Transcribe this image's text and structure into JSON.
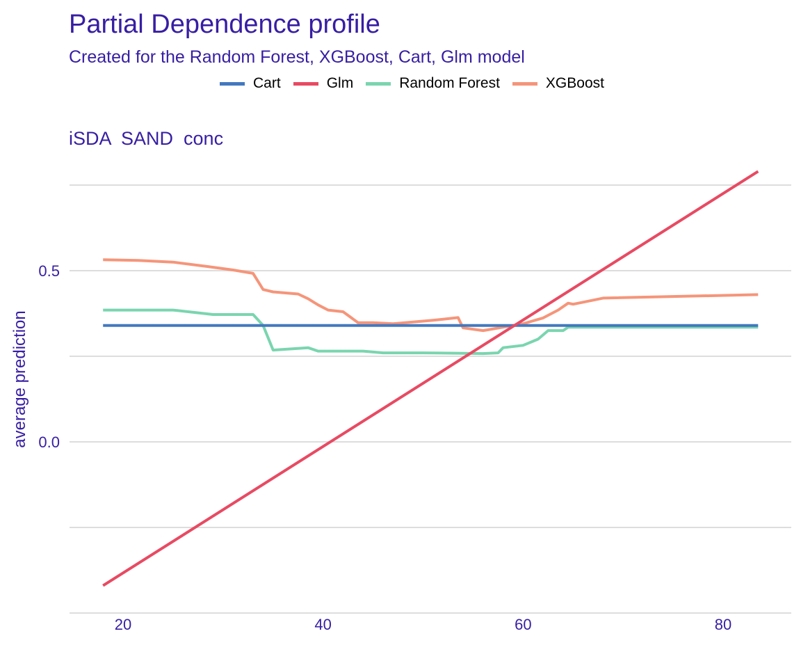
{
  "chart_data": {
    "type": "line",
    "title": "Partial Dependence profile",
    "subtitle": "Created for the Random Forest, XGBoost, Cart, Glm model",
    "panel_title": "iSDA  SAND  conc",
    "xlabel": "",
    "ylabel": "average prediction",
    "xlim": [
      16,
      86
    ],
    "ylim": [
      -0.5,
      0.8
    ],
    "x_ticks": [
      20,
      40,
      60,
      80
    ],
    "y_ticks": [
      0.0,
      0.5
    ],
    "y_gridlines": [
      -0.5,
      -0.25,
      0.0,
      0.25,
      0.5,
      0.75
    ],
    "grid": true,
    "legend_position": "top",
    "series": [
      {
        "name": "Cart",
        "color": "#4378bf",
        "points": [
          [
            18,
            0.34
          ],
          [
            83.5,
            0.34
          ]
        ]
      },
      {
        "name": "Glm",
        "color": "#e84a62",
        "points": [
          [
            18,
            -0.42
          ],
          [
            83.5,
            0.79
          ]
        ]
      },
      {
        "name": "Random Forest",
        "color": "#7ad5af",
        "points": [
          [
            18,
            0.385
          ],
          [
            25,
            0.385
          ],
          [
            29,
            0.372
          ],
          [
            33,
            0.372
          ],
          [
            34,
            0.34
          ],
          [
            35,
            0.268
          ],
          [
            38.5,
            0.275
          ],
          [
            39.5,
            0.265
          ],
          [
            44,
            0.265
          ],
          [
            46,
            0.26
          ],
          [
            50,
            0.26
          ],
          [
            56,
            0.258
          ],
          [
            57.5,
            0.26
          ],
          [
            58,
            0.275
          ],
          [
            60,
            0.282
          ],
          [
            61.5,
            0.3
          ],
          [
            62.5,
            0.325
          ],
          [
            64,
            0.325
          ],
          [
            64.5,
            0.335
          ],
          [
            83.5,
            0.335
          ]
        ]
      },
      {
        "name": "XGBoost",
        "color": "#f5957a",
        "points": [
          [
            18,
            0.532
          ],
          [
            21.5,
            0.53
          ],
          [
            25,
            0.525
          ],
          [
            28.5,
            0.512
          ],
          [
            31,
            0.502
          ],
          [
            33,
            0.492
          ],
          [
            34,
            0.445
          ],
          [
            35,
            0.438
          ],
          [
            37.5,
            0.432
          ],
          [
            38.5,
            0.418
          ],
          [
            39.5,
            0.4
          ],
          [
            40.5,
            0.385
          ],
          [
            42,
            0.38
          ],
          [
            43.5,
            0.348
          ],
          [
            45,
            0.348
          ],
          [
            47,
            0.345
          ],
          [
            49,
            0.35
          ],
          [
            51,
            0.355
          ],
          [
            53.5,
            0.363
          ],
          [
            54,
            0.333
          ],
          [
            56,
            0.325
          ],
          [
            58,
            0.335
          ],
          [
            60,
            0.345
          ],
          [
            62,
            0.362
          ],
          [
            63.5,
            0.385
          ],
          [
            64.5,
            0.405
          ],
          [
            65,
            0.402
          ],
          [
            66,
            0.408
          ],
          [
            68,
            0.42
          ],
          [
            83.5,
            0.43
          ]
        ]
      }
    ]
  }
}
